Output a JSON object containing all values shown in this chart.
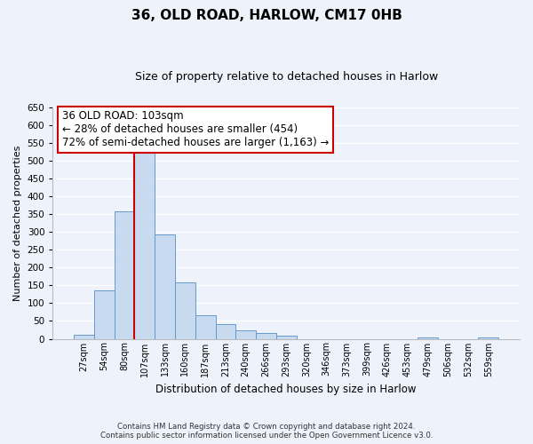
{
  "title": "36, OLD ROAD, HARLOW, CM17 0HB",
  "subtitle": "Size of property relative to detached houses in Harlow",
  "xlabel": "Distribution of detached houses by size in Harlow",
  "ylabel": "Number of detached properties",
  "bar_labels": [
    "27sqm",
    "54sqm",
    "80sqm",
    "107sqm",
    "133sqm",
    "160sqm",
    "187sqm",
    "213sqm",
    "240sqm",
    "266sqm",
    "293sqm",
    "320sqm",
    "346sqm",
    "373sqm",
    "399sqm",
    "426sqm",
    "453sqm",
    "479sqm",
    "506sqm",
    "532sqm",
    "559sqm"
  ],
  "bar_values": [
    12,
    137,
    358,
    535,
    292,
    158,
    67,
    41,
    23,
    15,
    8,
    0,
    0,
    0,
    0,
    0,
    0,
    3,
    0,
    0,
    3
  ],
  "bar_color": "#c8daf0",
  "bar_edge_color": "#6699cc",
  "vline_x_idx": 3,
  "vline_color": "#cc0000",
  "annotation_title": "36 OLD ROAD: 103sqm",
  "annotation_line1": "← 28% of detached houses are smaller (454)",
  "annotation_line2": "72% of semi-detached houses are larger (1,163) →",
  "annotation_box_color": "#ffffff",
  "annotation_box_edge": "#cc0000",
  "ylim": [
    0,
    650
  ],
  "yticks": [
    0,
    50,
    100,
    150,
    200,
    250,
    300,
    350,
    400,
    450,
    500,
    550,
    600,
    650
  ],
  "footer_line1": "Contains HM Land Registry data © Crown copyright and database right 2024.",
  "footer_line2": "Contains public sector information licensed under the Open Government Licence v3.0.",
  "bg_color": "#eef3fb",
  "plot_bg_color": "#eef3fb",
  "grid_color": "#ffffff",
  "title_fontsize": 11,
  "subtitle_fontsize": 9,
  "ylabel_fontsize": 8,
  "xlabel_fontsize": 8.5
}
